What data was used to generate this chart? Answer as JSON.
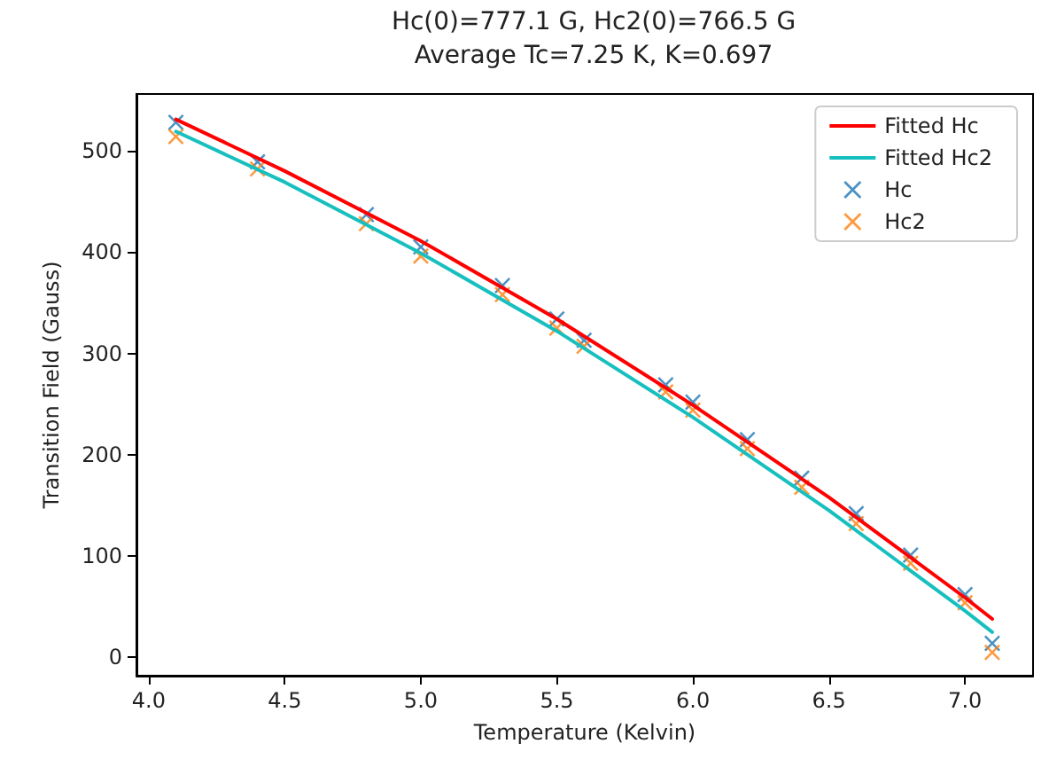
{
  "chart_data": {
    "type": "scatter",
    "title": "Hc(0)=777.1 G, Hc2(0)=766.5 G\nAverage Tc=7.25 K, K=0.697",
    "xlabel": "Temperature (Kelvin)",
    "ylabel": "Transition Field (Gauss)",
    "xlim": [
      3.955,
      7.25
    ],
    "xticks": [
      {
        "value": 4,
        "label": "4.0"
      },
      {
        "value": 4.5,
        "label": "4.5"
      },
      {
        "value": 5,
        "label": "5.0"
      },
      {
        "value": 5.5,
        "label": "5.5"
      },
      {
        "value": 6,
        "label": "6.0"
      },
      {
        "value": 6.5,
        "label": "6.5"
      },
      {
        "value": 7,
        "label": "7.0"
      }
    ],
    "ylim": [
      -18,
      556
    ],
    "yticks": [
      0,
      100,
      200,
      300,
      400,
      500
    ],
    "grid": false,
    "legend": "top right",
    "series": [
      {
        "name": "Fitted Hc",
        "type": "line",
        "marker": "none",
        "line_style": "solid",
        "color": "#ff0000",
        "x": [
          4.1,
          4.5,
          5.0,
          5.5,
          6.0,
          6.5,
          7.0,
          7.1
        ],
        "values": [
          531,
          480,
          411,
          334,
          249,
          158,
          59,
          38
        ]
      },
      {
        "name": "Fitted Hc2",
        "type": "line",
        "marker": "none",
        "line_style": "solid",
        "color": "#17bfbf",
        "x": [
          4.1,
          4.5,
          5.0,
          5.5,
          6.0,
          6.5,
          7.0,
          7.1
        ],
        "values": [
          519,
          469,
          399,
          322,
          237,
          145,
          46,
          25
        ]
      },
      {
        "name": "Hc",
        "marker": "cross",
        "color": "#1f77b4",
        "x": [
          4.1,
          4.4,
          4.8,
          5.0,
          5.3,
          5.5,
          5.6,
          5.9,
          6.0,
          6.2,
          6.4,
          6.6,
          6.8,
          7.0,
          7.1
        ],
        "values": [
          528,
          489,
          437,
          405,
          367,
          334,
          313,
          269,
          252,
          215,
          177,
          142,
          101,
          62,
          14
        ]
      },
      {
        "name": "Hc2",
        "marker": "cross",
        "color": "#ff7f0e",
        "x": [
          4.1,
          4.4,
          4.8,
          5.0,
          5.3,
          5.5,
          5.6,
          5.9,
          6.0,
          6.2,
          6.4,
          6.6,
          6.8,
          7.0,
          7.1
        ],
        "values": [
          514,
          482,
          428,
          396,
          358,
          325,
          307,
          262,
          244,
          206,
          168,
          132,
          93,
          54,
          5
        ]
      }
    ]
  }
}
